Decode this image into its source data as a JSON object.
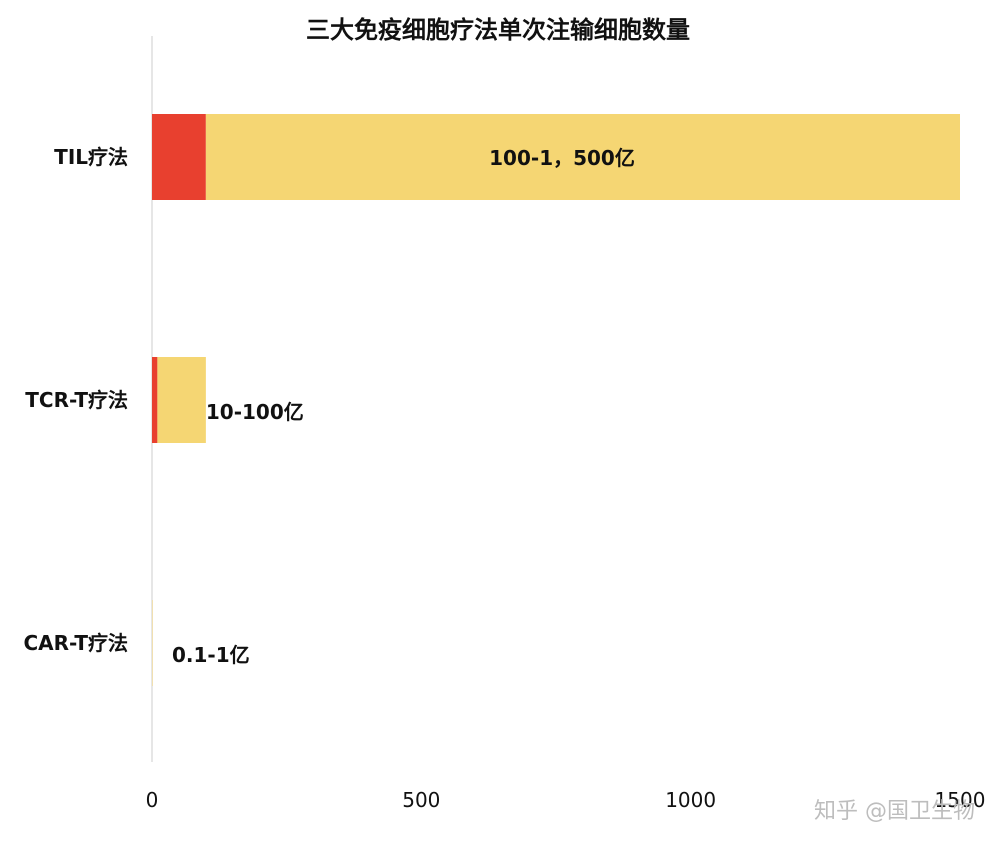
{
  "chart_data": {
    "type": "bar",
    "orientation": "horizontal",
    "stacked": true,
    "title": "三大免疫细胞疗法单次注输细胞数量",
    "categories": [
      "TIL疗法",
      "TCR-T疗法",
      "CAR-T疗法"
    ],
    "series": [
      {
        "color": "#e8402f",
        "values": [
          100,
          10,
          0.1
        ]
      },
      {
        "color": "#f5d673",
        "values": [
          1400,
          90,
          0.9
        ]
      }
    ],
    "data_labels": [
      "100-1，500亿",
      "10-100亿",
      "0.1-1亿"
    ],
    "xlim": [
      0,
      1500
    ],
    "xticks": [
      0,
      500,
      1000,
      1500
    ],
    "xlabel": "",
    "ylabel": "",
    "grid": false,
    "legend": "none"
  },
  "watermark": "知乎 @国卫生物"
}
